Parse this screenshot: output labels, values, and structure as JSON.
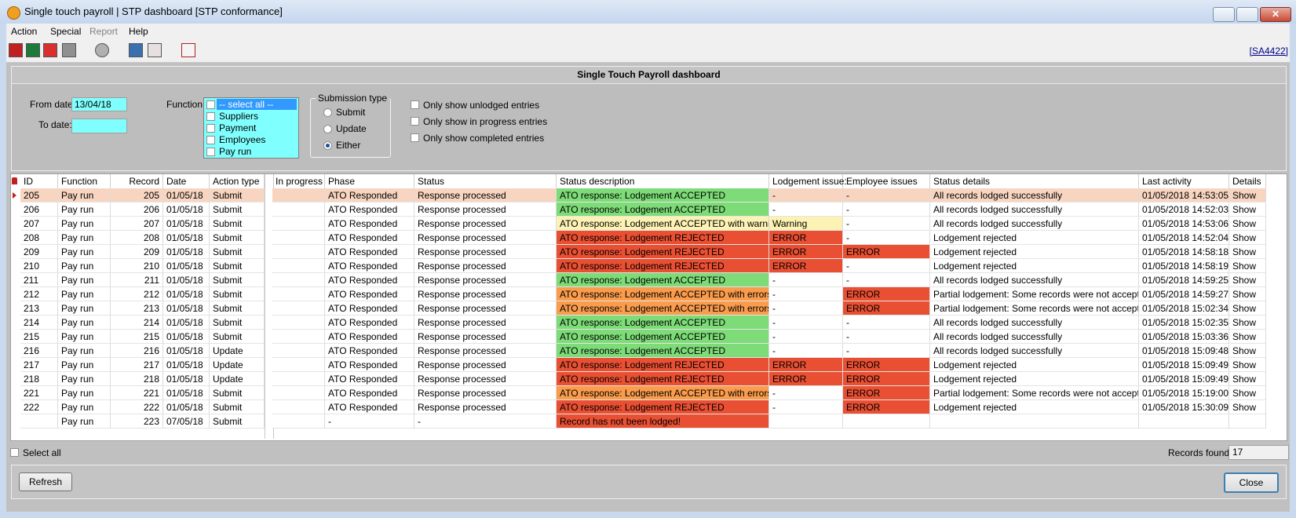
{
  "window": {
    "title": "Single touch payroll | STP dashboard [STP conformance]"
  },
  "menu": [
    "Action",
    "Special",
    "Report",
    "Help"
  ],
  "toolbar_link": "[SA4422]",
  "panel_title": "Single Touch Payroll dashboard",
  "filters": {
    "from_date_label": "From date:",
    "from_date": "13/04/18",
    "to_date_label": "To date:",
    "function_label": "Function:",
    "function_options": [
      "-- select all --",
      "Suppliers",
      "Payment",
      "Employees",
      "Pay run"
    ],
    "submission_type_label": "Submission type",
    "submission_options": [
      "Submit",
      "Update",
      "Either"
    ],
    "checkboxes": [
      "Only show unlodged entries",
      "Only show in progress entries",
      "Only show completed entries"
    ]
  },
  "table": {
    "columns": [
      "ID",
      "Function",
      "Record",
      "Date",
      "Action type",
      "In progress",
      "Phase",
      "Status",
      "Status description",
      "Lodgement issue:",
      "Employee issues",
      "Status details",
      "Last activity",
      "Details"
    ],
    "rows": [
      [
        205,
        "Pay run",
        205,
        "01/05/18",
        "Submit",
        null,
        "ATO Responded",
        "Response processed",
        "ATO response: Lodgement ACCEPTED",
        "-",
        "-",
        "All records lodged successfully",
        "01/05/2018 14:53:05",
        "Show"
      ],
      [
        206,
        "Pay run",
        206,
        "01/05/18",
        "Submit",
        null,
        "ATO Responded",
        "Response processed",
        "ATO response: Lodgement ACCEPTED",
        "-",
        "-",
        "All records lodged successfully",
        "01/05/2018 14:52:03",
        "Show"
      ],
      [
        207,
        "Pay run",
        207,
        "01/05/18",
        "Submit",
        null,
        "ATO Responded",
        "Response processed",
        "ATO response: Lodgement ACCEPTED with warnings",
        "Warning",
        "-",
        "All records lodged successfully",
        "01/05/2018 14:53:06",
        "Show"
      ],
      [
        208,
        "Pay run",
        208,
        "01/05/18",
        "Submit",
        null,
        "ATO Responded",
        "Response processed",
        "ATO response: Lodgement REJECTED",
        "ERROR",
        "-",
        "Lodgement rejected",
        "01/05/2018 14:52:04",
        "Show"
      ],
      [
        209,
        "Pay run",
        209,
        "01/05/18",
        "Submit",
        null,
        "ATO Responded",
        "Response processed",
        "ATO response: Lodgement REJECTED",
        "ERROR",
        "ERROR",
        "Lodgement rejected",
        "01/05/2018 14:58:18",
        "Show"
      ],
      [
        210,
        "Pay run",
        210,
        "01/05/18",
        "Submit",
        null,
        "ATO Responded",
        "Response processed",
        "ATO response: Lodgement REJECTED",
        "ERROR",
        "-",
        "Lodgement rejected",
        "01/05/2018 14:58:19",
        "Show"
      ],
      [
        211,
        "Pay run",
        211,
        "01/05/18",
        "Submit",
        null,
        "ATO Responded",
        "Response processed",
        "ATO response: Lodgement ACCEPTED",
        "-",
        "-",
        "All records lodged successfully",
        "01/05/2018 14:59:25",
        "Show"
      ],
      [
        212,
        "Pay run",
        212,
        "01/05/18",
        "Submit",
        null,
        "ATO Responded",
        "Response processed",
        "ATO response: Lodgement ACCEPTED with errors",
        "-",
        "ERROR",
        "Partial lodgement: Some records were not accepted",
        "01/05/2018 14:59:27",
        "Show"
      ],
      [
        213,
        "Pay run",
        213,
        "01/05/18",
        "Submit",
        null,
        "ATO Responded",
        "Response processed",
        "ATO response: Lodgement ACCEPTED with errors",
        "-",
        "ERROR",
        "Partial lodgement: Some records were not accepted",
        "01/05/2018 15:02:34",
        "Show"
      ],
      [
        214,
        "Pay run",
        214,
        "01/05/18",
        "Submit",
        null,
        "ATO Responded",
        "Response processed",
        "ATO response: Lodgement ACCEPTED",
        "-",
        "-",
        "All records lodged successfully",
        "01/05/2018 15:02:35",
        "Show"
      ],
      [
        215,
        "Pay run",
        215,
        "01/05/18",
        "Submit",
        null,
        "ATO Responded",
        "Response processed",
        "ATO response: Lodgement ACCEPTED",
        "-",
        "-",
        "All records lodged successfully",
        "01/05/2018 15:03:36",
        "Show"
      ],
      [
        216,
        "Pay run",
        216,
        "01/05/18",
        "Update",
        null,
        "ATO Responded",
        "Response processed",
        "ATO response: Lodgement ACCEPTED",
        "-",
        "-",
        "All records lodged successfully",
        "01/05/2018 15:09:48",
        "Show"
      ],
      [
        217,
        "Pay run",
        217,
        "01/05/18",
        "Update",
        null,
        "ATO Responded",
        "Response processed",
        "ATO response: Lodgement REJECTED",
        "ERROR",
        "ERROR",
        "Lodgement rejected",
        "01/05/2018 15:09:49",
        "Show"
      ],
      [
        218,
        "Pay run",
        218,
        "01/05/18",
        "Update",
        null,
        "ATO Responded",
        "Response processed",
        "ATO response: Lodgement REJECTED",
        "ERROR",
        "ERROR",
        "Lodgement rejected",
        "01/05/2018 15:09:49",
        "Show"
      ],
      [
        221,
        "Pay run",
        221,
        "01/05/18",
        "Submit",
        null,
        "ATO Responded",
        "Response processed",
        "ATO response: Lodgement ACCEPTED with errors",
        "-",
        "ERROR",
        "Partial lodgement: Some records were not accepted",
        "01/05/2018 15:19:00",
        "Show"
      ],
      [
        222,
        "Pay run",
        222,
        "01/05/18",
        "Submit",
        null,
        "ATO Responded",
        "Response processed",
        "ATO response: Lodgement REJECTED",
        "-",
        "ERROR",
        "Lodgement rejected",
        "01/05/2018 15:30:09",
        "Show"
      ],
      [
        null,
        "Pay run",
        223,
        "07/05/18",
        "Submit",
        null,
        "-",
        "-",
        "Record has not been lodged!",
        null,
        null,
        null,
        null,
        null
      ]
    ]
  },
  "footer": {
    "select_all": "Select all",
    "records_found_label": "Records found:",
    "records_found": "17",
    "refresh": "Refresh",
    "close": "Close"
  }
}
